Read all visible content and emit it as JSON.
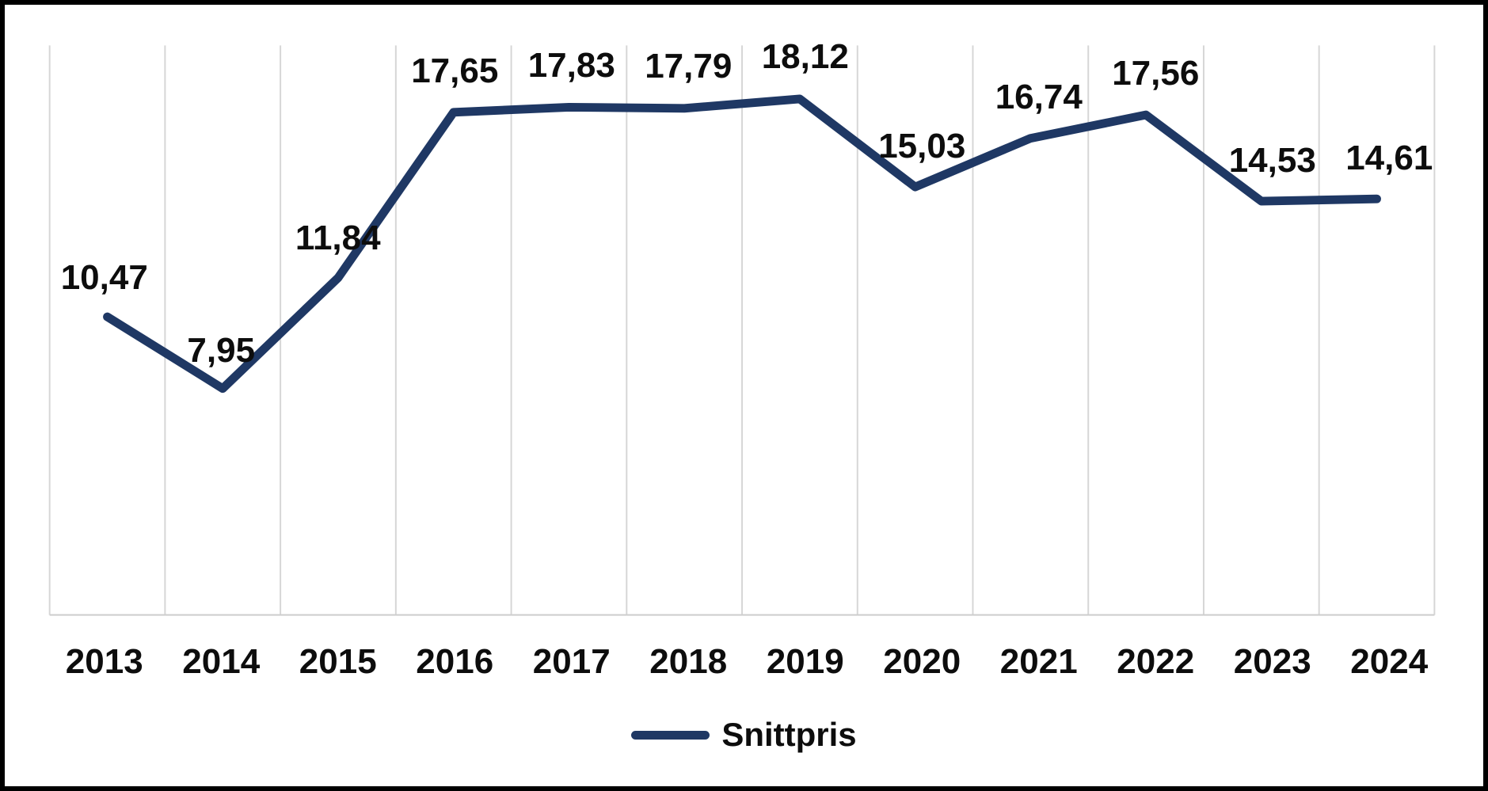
{
  "chart_data": {
    "type": "line",
    "title": "",
    "categories": [
      "2013",
      "2014",
      "2015",
      "2016",
      "2017",
      "2018",
      "2019",
      "2020",
      "2021",
      "2022",
      "2023",
      "2024"
    ],
    "series": [
      {
        "name": "Snittpris",
        "values": [
          10.47,
          7.95,
          11.84,
          17.65,
          17.83,
          17.79,
          18.12,
          15.03,
          16.74,
          17.56,
          14.53,
          14.61
        ],
        "data_labels": [
          "10,47",
          "7,95",
          "11,84",
          "17,65",
          "17,83",
          "17,79",
          "18,12",
          "15,03",
          "16,74",
          "17,56",
          "14,53",
          "14,61"
        ]
      }
    ],
    "xlabel": "",
    "ylabel": "",
    "ylim": [
      0,
      20
    ],
    "y_axis_visible": false,
    "grid": "vertical-between-categories",
    "legend_position": "bottom-center",
    "colors": {
      "line": "#1f3864",
      "gridline": "#d6d6d6",
      "axis_line": "#cdcdcd",
      "label_text": "#0d0d0d",
      "background": "#ffffff",
      "frame_border": "#000000"
    }
  },
  "legend": {
    "items": [
      {
        "label": "Snittpris",
        "marker": "line-marker",
        "color": "#1f3864"
      }
    ]
  }
}
